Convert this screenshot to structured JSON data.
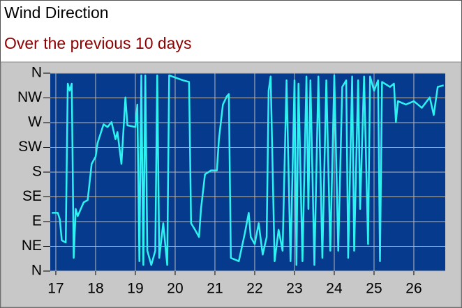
{
  "chart_data": {
    "type": "line",
    "title": "Wind Direction",
    "subtitle": "Over the previous 10 days",
    "x": [
      16.9,
      17.05,
      17.1,
      17.15,
      17.25,
      17.3,
      17.35,
      17.4,
      17.45,
      17.5,
      17.55,
      17.7,
      17.8,
      17.9,
      18.0,
      18.05,
      18.2,
      18.3,
      18.4,
      18.5,
      18.55,
      18.65,
      18.75,
      18.8,
      19.0,
      19.05,
      19.1,
      19.15,
      19.2,
      19.25,
      19.3,
      19.4,
      19.5,
      19.55,
      19.6,
      19.7,
      19.8,
      19.85,
      20.2,
      20.35,
      20.4,
      20.5,
      20.6,
      20.65,
      20.75,
      20.9,
      21.05,
      21.1,
      21.2,
      21.3,
      21.35,
      21.4,
      21.6,
      21.75,
      21.85,
      21.9,
      22.0,
      22.1,
      22.2,
      22.3,
      22.35,
      22.4,
      22.5,
      22.6,
      22.7,
      22.8,
      22.9,
      23.0,
      23.05,
      23.1,
      23.2,
      23.3,
      23.35,
      23.4,
      23.5,
      23.6,
      23.7,
      23.8,
      23.9,
      24.0,
      24.1,
      24.2,
      24.3,
      24.35,
      24.45,
      24.5,
      24.6,
      24.65,
      24.75,
      24.85,
      24.9,
      25.0,
      25.1,
      25.15,
      25.2,
      25.4,
      25.5,
      25.55,
      25.6,
      25.8,
      26.0,
      26.2,
      26.4,
      26.5,
      26.6,
      26.75
    ],
    "series": [
      {
        "name": "Wind Direction",
        "color": "#2ef2f2",
        "values": [
          106,
          106,
          94,
          56,
          52,
          341,
          328,
          341,
          24,
          113,
          100,
          125,
          129,
          195,
          208,
          233,
          267,
          262,
          271,
          240,
          253,
          195,
          316,
          265,
          262,
          303,
          18,
          356,
          11,
          356,
          37,
          11,
          37,
          356,
          24,
          87,
          11,
          356,
          347,
          344,
          87,
          75,
          62,
          113,
          176,
          183,
          183,
          240,
          303,
          318,
          322,
          24,
          18,
          68,
          106,
          62,
          49,
          87,
          30,
          62,
          328,
          354,
          18,
          75,
          37,
          347,
          18,
          347,
          11,
          341,
          18,
          354,
          113,
          347,
          11,
          354,
          24,
          347,
          37,
          356,
          37,
          335,
          347,
          24,
          354,
          37,
          347,
          113,
          354,
          49,
          354,
          328,
          347,
          18,
          344,
          335,
          341,
          271,
          309,
          303,
          309,
          297,
          316,
          284,
          335,
          338
        ]
      }
    ],
    "xlim": [
      16.86,
      26.79
    ],
    "xticks": [
      17,
      18,
      19,
      20,
      21,
      22,
      23,
      24,
      25,
      26
    ],
    "ylim": [
      0,
      360
    ],
    "yticks": [
      {
        "value": 0,
        "label": "N"
      },
      {
        "value": 45,
        "label": "NE"
      },
      {
        "value": 90,
        "label": "E"
      },
      {
        "value": 135,
        "label": "SE"
      },
      {
        "value": 180,
        "label": "S"
      },
      {
        "value": 225,
        "label": "SW"
      },
      {
        "value": 270,
        "label": "W"
      },
      {
        "value": 315,
        "label": "NW"
      },
      {
        "value": 360,
        "label": "N"
      }
    ],
    "grid": true,
    "background": "#063a8c"
  }
}
